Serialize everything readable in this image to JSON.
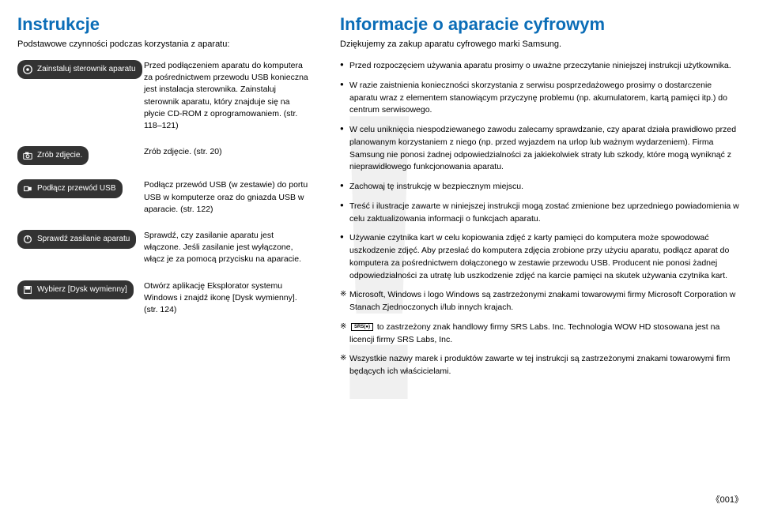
{
  "colors": {
    "heading": "#0b6db7",
    "badge_bg": "#333333",
    "text": "#000000",
    "watermark": "#f0f0f0",
    "background": "#ffffff"
  },
  "left": {
    "title": "Instrukcje",
    "subtitle": "Podstawowe czynności podczas korzystania z aparatu:",
    "steps": [
      {
        "badge": "Zainstaluj sterownik aparatu",
        "icon": "disc",
        "desc": "Przed podłączeniem aparatu do komputera za pośrednictwem przewodu USB konieczna jest instalacja sterownika. Zainstaluj sterownik aparatu, który znajduje się na płycie CD-ROM z oprogramowaniem. (str. 118–121)"
      },
      {
        "badge": "Zrób zdjęcie.",
        "icon": "camera",
        "desc": "Zrób zdjęcie. (str. 20)"
      },
      {
        "badge": "Podłącz przewód USB",
        "icon": "usb",
        "desc": "Podłącz przewód USB (w zestawie) do portu USB w komputerze oraz do gniazda USB w aparacie. (str. 122)"
      },
      {
        "badge": "Sprawdź zasilanie aparatu",
        "icon": "power",
        "desc": "Sprawdź, czy zasilanie aparatu jest włączone. Jeśli zasilanie jest wyłączone, włącz je za pomocą przycisku na aparacie."
      },
      {
        "badge": "Wybierz [Dysk wymienny]",
        "icon": "disk",
        "desc": "Otwórz aplikację Eksplorator systemu Windows i znajdź ikonę [Dysk wymienny]. (str. 124)"
      }
    ]
  },
  "right": {
    "title": "Informacje o aparacie cyfrowym",
    "subtitle": "Dziękujemy za zakup aparatu cyfrowego marki Samsung.",
    "bullets": [
      {
        "type": "dot",
        "text": "Przed rozpoczęciem używania aparatu prosimy o uważne przeczytanie niniejszej instrukcji użytkownika."
      },
      {
        "type": "dot",
        "text": "W razie zaistnienia konieczności skorzystania z serwisu posprzedażowego prosimy o dostarczenie aparatu wraz z elementem stanowiącym przyczynę problemu (np. akumulatorem, kartą pamięci itp.) do centrum serwisowego."
      },
      {
        "type": "dot",
        "text": "W celu uniknięcia niespodziewanego zawodu zalecamy sprawdzanie, czy aparat działa prawidłowo przed planowanym korzystaniem z niego (np. przed wyjazdem na urlop lub ważnym wydarzeniem). Firma Samsung nie ponosi żadnej odpowiedzialności za jakiekolwiek straty lub szkody, które mogą wyniknąć z nieprawidłowego funkcjonowania aparatu."
      },
      {
        "type": "dot",
        "text": "Zachowaj tę instrukcję w bezpiecznym miejscu."
      },
      {
        "type": "dot",
        "text": "Treść i ilustracje zawarte w niniejszej instrukcji mogą zostać zmienione bez uprzedniego powiadomienia w celu zaktualizowania informacji o funkcjach aparatu."
      },
      {
        "type": "dot",
        "text": "Używanie czytnika kart w celu kopiowania zdjęć z karty pamięci do komputera może spowodować uszkodzenie zdjęć. Aby przesłać do komputera zdjęcia zrobione przy użyciu aparatu, podłącz aparat do komputera za pośrednictwem dołączonego w zestawie przewodu USB. Producent nie ponosi żadnej odpowiedzialności za utratę lub uszkodzenie zdjęć na karcie pamięci na skutek używania czytnika kart."
      },
      {
        "type": "star",
        "text": "Microsoft, Windows i logo Windows są zastrzeżonymi znakami towarowymi firmy Microsoft Corporation w Stanach Zjednoczonych i/lub innych krajach."
      },
      {
        "type": "star",
        "srs": true,
        "text": " to zastrzeżony znak handlowy firmy SRS Labs. Inc. Technologia WOW HD stosowana jest na licencji firmy SRS Labs, Inc."
      },
      {
        "type": "star",
        "text": "Wszystkie nazwy marek i produktów zawarte w tej instrukcji są zastrzeżonymi znakami towarowymi firm będących ich właścicielami."
      }
    ]
  },
  "srs_label": "SRS(●)",
  "page_number": "001"
}
